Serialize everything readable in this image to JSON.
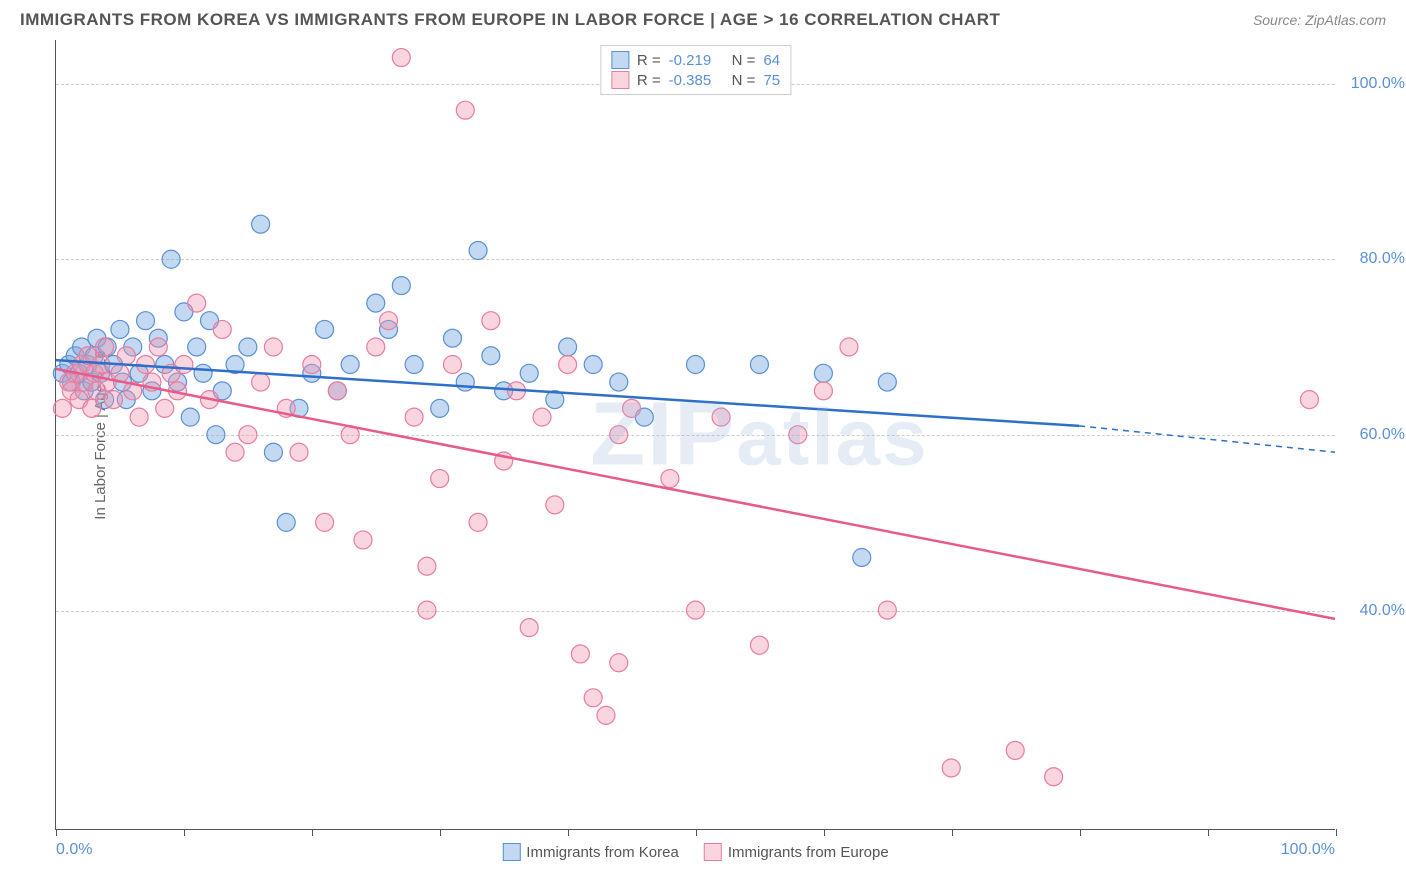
{
  "title": "IMMIGRANTS FROM KOREA VS IMMIGRANTS FROM EUROPE IN LABOR FORCE | AGE > 16 CORRELATION CHART",
  "source": "Source: ZipAtlas.com",
  "y_axis_title": "In Labor Force | Age > 16",
  "watermark_1": "ZIP",
  "watermark_2": "atlas",
  "chart": {
    "type": "scatter",
    "xlim": [
      0,
      100
    ],
    "ylim": [
      15,
      105
    ],
    "x_ticks": [
      0,
      10,
      20,
      30,
      40,
      50,
      60,
      70,
      80,
      90,
      100
    ],
    "x_label_min": "0.0%",
    "x_label_max": "100.0%",
    "y_gridlines": [
      40,
      60,
      80,
      100
    ],
    "y_labels": [
      "40.0%",
      "60.0%",
      "80.0%",
      "100.0%"
    ],
    "background_color": "#ffffff",
    "grid_color": "#cccccc",
    "point_radius": 9,
    "series": [
      {
        "name": "Immigrants from Korea",
        "fill": "rgba(120,170,225,0.45)",
        "stroke": "#5b8fd6",
        "line_color": "#2e6fc9",
        "r_label": "R =",
        "r_value": "-0.219",
        "n_label": "N =",
        "n_value": "64",
        "trend": {
          "x1": 0,
          "y1": 68.5,
          "x2_solid": 80,
          "y2_solid": 61,
          "x2_dash": 100,
          "y2_dash": 58
        },
        "points": [
          [
            0.5,
            67
          ],
          [
            1,
            68
          ],
          [
            1.2,
            66
          ],
          [
            1.5,
            69
          ],
          [
            1.8,
            67
          ],
          [
            2,
            70
          ],
          [
            2.2,
            65
          ],
          [
            2.5,
            68
          ],
          [
            2.8,
            66
          ],
          [
            3,
            69
          ],
          [
            3.2,
            71
          ],
          [
            3.5,
            67
          ],
          [
            3.8,
            64
          ],
          [
            4,
            70
          ],
          [
            4.5,
            68
          ],
          [
            5,
            72
          ],
          [
            5.2,
            66
          ],
          [
            5.5,
            64
          ],
          [
            6,
            70
          ],
          [
            6.5,
            67
          ],
          [
            7,
            73
          ],
          [
            7.5,
            65
          ],
          [
            8,
            71
          ],
          [
            8.5,
            68
          ],
          [
            9,
            80
          ],
          [
            9.5,
            66
          ],
          [
            10,
            74
          ],
          [
            10.5,
            62
          ],
          [
            11,
            70
          ],
          [
            11.5,
            67
          ],
          [
            12,
            73
          ],
          [
            12.5,
            60
          ],
          [
            13,
            65
          ],
          [
            14,
            68
          ],
          [
            15,
            70
          ],
          [
            16,
            84
          ],
          [
            17,
            58
          ],
          [
            18,
            50
          ],
          [
            19,
            63
          ],
          [
            20,
            67
          ],
          [
            21,
            72
          ],
          [
            22,
            65
          ],
          [
            23,
            68
          ],
          [
            25,
            75
          ],
          [
            26,
            72
          ],
          [
            27,
            77
          ],
          [
            28,
            68
          ],
          [
            30,
            63
          ],
          [
            31,
            71
          ],
          [
            32,
            66
          ],
          [
            33,
            81
          ],
          [
            34,
            69
          ],
          [
            35,
            65
          ],
          [
            37,
            67
          ],
          [
            39,
            64
          ],
          [
            40,
            70
          ],
          [
            42,
            68
          ],
          [
            44,
            66
          ],
          [
            46,
            62
          ],
          [
            50,
            68
          ],
          [
            55,
            68
          ],
          [
            60,
            67
          ],
          [
            63,
            46
          ],
          [
            65,
            66
          ]
        ]
      },
      {
        "name": "Immigrants from Europe",
        "fill": "rgba(240,150,175,0.40)",
        "stroke": "#e87ca0",
        "line_color": "#e85a8a",
        "r_label": "R =",
        "r_value": "-0.385",
        "n_label": "N =",
        "n_value": "75",
        "trend": {
          "x1": 0,
          "y1": 67.5,
          "x2_solid": 100,
          "y2_solid": 39,
          "x2_dash": 100,
          "y2_dash": 39
        },
        "points": [
          [
            0.5,
            63
          ],
          [
            1,
            66
          ],
          [
            1.2,
            65
          ],
          [
            1.5,
            67
          ],
          [
            1.8,
            64
          ],
          [
            2,
            68
          ],
          [
            2.2,
            66
          ],
          [
            2.5,
            69
          ],
          [
            2.8,
            63
          ],
          [
            3,
            67
          ],
          [
            3.2,
            65
          ],
          [
            3.5,
            68
          ],
          [
            3.8,
            70
          ],
          [
            4,
            66
          ],
          [
            4.5,
            64
          ],
          [
            5,
            67
          ],
          [
            5.5,
            69
          ],
          [
            6,
            65
          ],
          [
            6.5,
            62
          ],
          [
            7,
            68
          ],
          [
            7.5,
            66
          ],
          [
            8,
            70
          ],
          [
            8.5,
            63
          ],
          [
            9,
            67
          ],
          [
            9.5,
            65
          ],
          [
            10,
            68
          ],
          [
            11,
            75
          ],
          [
            12,
            64
          ],
          [
            13,
            72
          ],
          [
            14,
            58
          ],
          [
            15,
            60
          ],
          [
            16,
            66
          ],
          [
            17,
            70
          ],
          [
            18,
            63
          ],
          [
            19,
            58
          ],
          [
            20,
            68
          ],
          [
            21,
            50
          ],
          [
            22,
            65
          ],
          [
            23,
            60
          ],
          [
            24,
            48
          ],
          [
            25,
            70
          ],
          [
            26,
            73
          ],
          [
            27,
            103
          ],
          [
            28,
            62
          ],
          [
            29,
            40
          ],
          [
            30,
            55
          ],
          [
            31,
            68
          ],
          [
            32,
            97
          ],
          [
            33,
            50
          ],
          [
            34,
            73
          ],
          [
            35,
            57
          ],
          [
            36,
            65
          ],
          [
            37,
            38
          ],
          [
            38,
            62
          ],
          [
            39,
            52
          ],
          [
            40,
            68
          ],
          [
            41,
            35
          ],
          [
            42,
            30
          ],
          [
            43,
            28
          ],
          [
            44,
            60
          ],
          [
            45,
            63
          ],
          [
            48,
            55
          ],
          [
            50,
            40
          ],
          [
            52,
            62
          ],
          [
            55,
            36
          ],
          [
            58,
            60
          ],
          [
            60,
            65
          ],
          [
            62,
            70
          ],
          [
            65,
            40
          ],
          [
            70,
            22
          ],
          [
            75,
            24
          ],
          [
            78,
            21
          ],
          [
            98,
            64
          ],
          [
            44,
            34
          ],
          [
            29,
            45
          ]
        ]
      }
    ]
  }
}
